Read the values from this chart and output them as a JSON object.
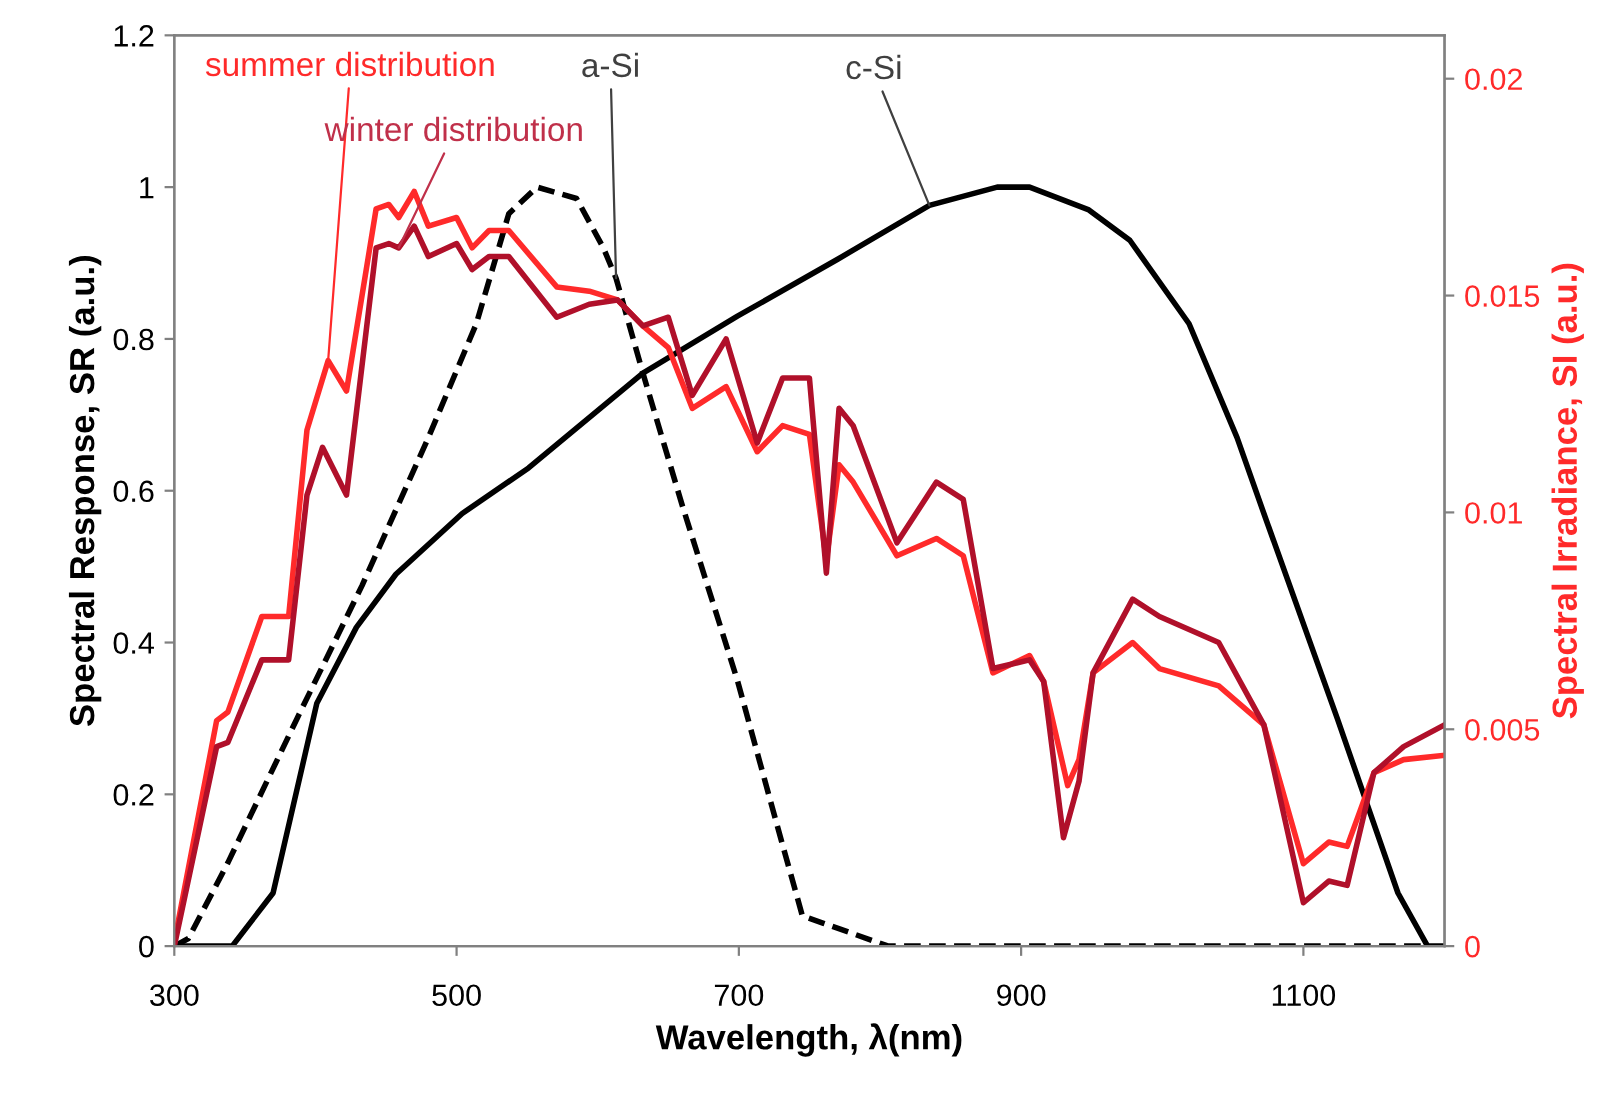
{
  "chart_data": {
    "type": "line",
    "xlabel": "Wavelength, λ(nm)",
    "ylabel": "Spectral Response, SR (a.u.)",
    "y2label": "Spectral Irradiance, SI (a.u.)",
    "xlim": [
      300,
      1200
    ],
    "xticks": [
      300,
      500,
      700,
      900,
      1100
    ],
    "ylim": [
      0,
      1.2
    ],
    "yticks": [
      0,
      0.2,
      0.4,
      0.6,
      0.8,
      1,
      1.2
    ],
    "y2lim": [
      0,
      0.021
    ],
    "y2ticks": [
      0,
      0.005,
      0.01,
      0.015,
      0.02
    ],
    "grid": false,
    "marker": "none",
    "series": [
      {
        "name": "summer distribution",
        "color": "#ff2a2a",
        "axis": "y2",
        "line_style": "solid",
        "x": [
          300,
          330,
          338,
          362,
          374,
          381,
          394,
          409,
          422,
          443,
          452,
          459,
          470,
          480,
          500,
          511,
          523,
          537,
          571,
          594,
          614,
          632,
          650,
          667,
          691,
          713,
          731,
          750,
          762,
          771,
          781,
          812,
          840,
          859,
          880,
          906,
          916,
          933,
          941,
          951,
          979,
          998,
          1040,
          1072,
          1100,
          1118,
          1131,
          1150,
          1171,
          1200
        ],
        "values": [
          0.0001,
          0.0052,
          0.0054,
          0.0076,
          0.0076,
          0.0076,
          0.0119,
          0.0135,
          0.0128,
          0.017,
          0.0171,
          0.0168,
          0.0174,
          0.0166,
          0.0168,
          0.0161,
          0.0165,
          0.0165,
          0.0152,
          0.0151,
          0.0149,
          0.0143,
          0.0138,
          0.0124,
          0.0129,
          0.0114,
          0.012,
          0.0118,
          0.0089,
          0.0111,
          0.0107,
          0.009,
          0.0094,
          0.009,
          0.0063,
          0.0067,
          0.0061,
          0.0037,
          0.0043,
          0.0063,
          0.007,
          0.0064,
          0.006,
          0.0051,
          0.0019,
          0.0024,
          0.0023,
          0.004,
          0.0043,
          0.0044
        ]
      },
      {
        "name": "winter distribution",
        "color": "#b0102a",
        "axis": "y2",
        "line_style": "solid",
        "x": [
          300,
          330,
          338,
          362,
          381,
          394,
          405,
          422,
          443,
          452,
          459,
          470,
          480,
          500,
          511,
          523,
          537,
          571,
          594,
          614,
          632,
          650,
          667,
          691,
          713,
          731,
          750,
          762,
          771,
          781,
          812,
          840,
          859,
          880,
          906,
          916,
          930,
          941,
          951,
          979,
          998,
          1040,
          1072,
          1100,
          1118,
          1131,
          1150,
          1171,
          1200
        ],
        "values": [
          0.0,
          0.0046,
          0.0047,
          0.0066,
          0.0066,
          0.0104,
          0.0115,
          0.0104,
          0.0161,
          0.0162,
          0.0161,
          0.0166,
          0.0159,
          0.0162,
          0.0156,
          0.0159,
          0.0159,
          0.0145,
          0.0148,
          0.0149,
          0.0143,
          0.0145,
          0.0127,
          0.014,
          0.0116,
          0.0131,
          0.0131,
          0.0086,
          0.0124,
          0.012,
          0.0093,
          0.0107,
          0.0103,
          0.0064,
          0.0066,
          0.0061,
          0.0025,
          0.0038,
          0.0063,
          0.008,
          0.0076,
          0.007,
          0.0051,
          0.001,
          0.0015,
          0.0014,
          0.004,
          0.0046,
          0.0051
        ]
      },
      {
        "name": "a-Si",
        "color": "#000000",
        "axis": "y",
        "line_style": "dashed",
        "x": [
          300,
          310,
          338,
          387,
          433,
          480,
          514,
          537,
          557,
          585,
          604,
          613,
          632,
          660,
          699,
          727,
          745,
          760,
          806,
          1200
        ],
        "values": [
          0,
          0.01,
          0.11,
          0.3,
          0.475,
          0.67,
          0.82,
          0.965,
          1.0,
          0.985,
          0.92,
          0.88,
          0.755,
          0.58,
          0.35,
          0.16,
          0.04,
          0.03,
          0,
          0
        ]
      },
      {
        "name": "c-Si",
        "color": "#000000",
        "axis": "y",
        "line_style": "solid",
        "x": [
          300,
          341,
          370,
          401,
          429,
          457,
          504,
          551,
          632,
          699,
          770,
          835,
          883,
          906,
          948,
          977,
          1019,
          1053,
          1072,
          1124,
          1167,
          1188
        ],
        "values": [
          0,
          0,
          0.07,
          0.32,
          0.42,
          0.49,
          0.57,
          0.63,
          0.755,
          0.83,
          0.905,
          0.976,
          1.0,
          1.0,
          0.97,
          0.93,
          0.82,
          0.67,
          0.57,
          0.3,
          0.07,
          0
        ]
      }
    ]
  }
}
